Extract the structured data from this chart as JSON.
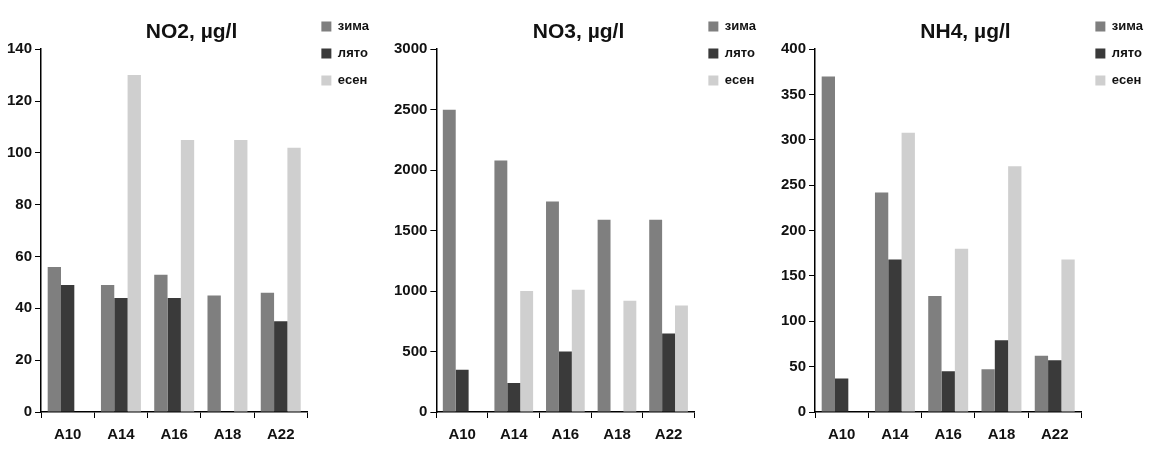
{
  "chart_data": [
    {
      "type": "bar",
      "title": "NO2, µg/l",
      "categories": [
        "A10",
        "A14",
        "A16",
        "A18",
        "A22"
      ],
      "series": [
        {
          "name": "зима",
          "color": "#7f7f7f",
          "values": [
            56,
            49,
            53,
            45,
            46
          ]
        },
        {
          "name": "лято",
          "color": "#3a3a3a",
          "values": [
            49,
            44,
            44,
            null,
            35
          ]
        },
        {
          "name": "есен",
          "color": "#cfcfcf",
          "values": [
            null,
            130,
            105,
            105,
            102
          ]
        }
      ],
      "ylim": [
        0,
        140
      ],
      "yticks": [
        0,
        20,
        40,
        60,
        80,
        100,
        120,
        140
      ],
      "grid": false,
      "legend": "top right"
    },
    {
      "type": "bar",
      "title": "NO3, µg/l",
      "categories": [
        "A10",
        "A14",
        "A16",
        "A18",
        "A22"
      ],
      "series": [
        {
          "name": "зима",
          "color": "#7f7f7f",
          "values": [
            2500,
            2080,
            1740,
            1590,
            1590
          ]
        },
        {
          "name": "лято",
          "color": "#3a3a3a",
          "values": [
            350,
            240,
            500,
            null,
            650
          ]
        },
        {
          "name": "есен",
          "color": "#cfcfcf",
          "values": [
            null,
            1000,
            1010,
            920,
            880
          ]
        }
      ],
      "ylim": [
        0,
        3000
      ],
      "yticks": [
        0,
        500,
        1000,
        1500,
        2000,
        2500,
        3000
      ],
      "grid": false,
      "legend": "top right"
    },
    {
      "type": "bar",
      "title": "NH4, µg/l",
      "categories": [
        "A10",
        "A14",
        "A16",
        "A18",
        "A22"
      ],
      "series": [
        {
          "name": "зима",
          "color": "#7f7f7f",
          "values": [
            370,
            242,
            128,
            47,
            62
          ]
        },
        {
          "name": "лято",
          "color": "#3a3a3a",
          "values": [
            37,
            168,
            45,
            79,
            57
          ]
        },
        {
          "name": "есен",
          "color": "#cfcfcf",
          "values": [
            null,
            308,
            180,
            271,
            168
          ]
        }
      ],
      "ylim": [
        0,
        400
      ],
      "yticks": [
        0,
        50,
        100,
        150,
        200,
        250,
        300,
        350,
        400
      ],
      "grid": false,
      "legend": "top right"
    }
  ]
}
